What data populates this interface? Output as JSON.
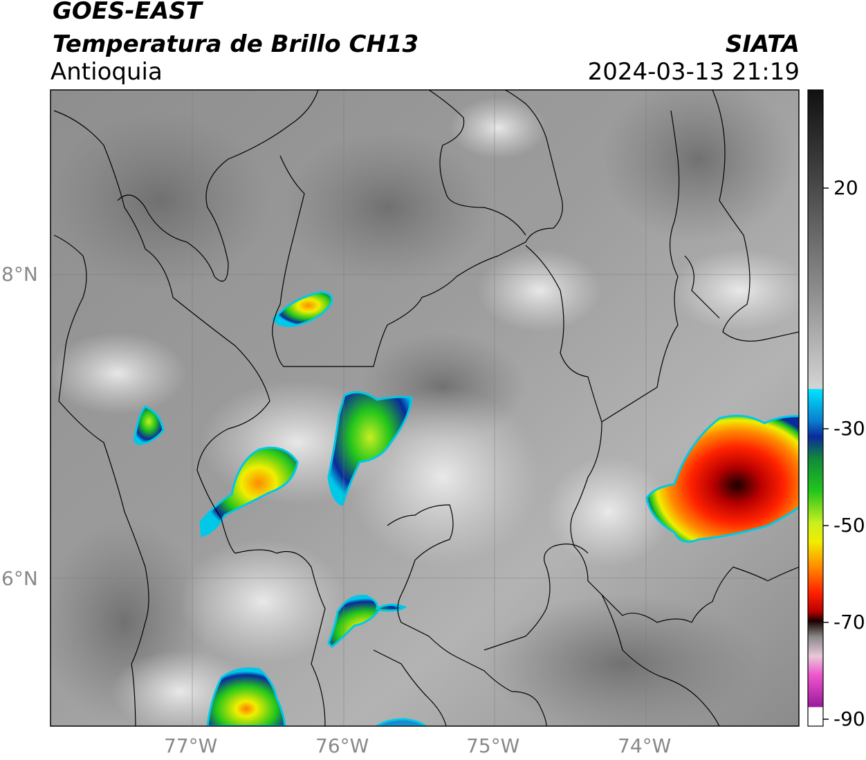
{
  "header": {
    "satellite": "GOES-EAST",
    "product": "Temperatura de Brillo CH13",
    "region": "Antioquia",
    "organization": "SIATA",
    "timestamp": "2024-03-13 21:19"
  },
  "axes": {
    "lat_labels": [
      "8°N",
      "6°N"
    ],
    "lon_labels": [
      "77°W",
      "76°W",
      "75°W",
      "74°W"
    ]
  },
  "colorbar": {
    "ticks": [
      "20",
      "-30",
      "-50",
      "-70",
      "-90"
    ],
    "colors": {
      "warm_gray_top": "#111111",
      "gray": "#9a9a9a",
      "white": "#ffffff",
      "cyan": "#00e5ff",
      "blue": "#0a2a9c",
      "green": "#22c51c",
      "yellow": "#f1ee00",
      "orange": "#ff8a00",
      "red": "#e50000",
      "dark": "#0d0d0d",
      "pink": "#ee55cc",
      "purple": "#9a1a9a"
    }
  }
}
